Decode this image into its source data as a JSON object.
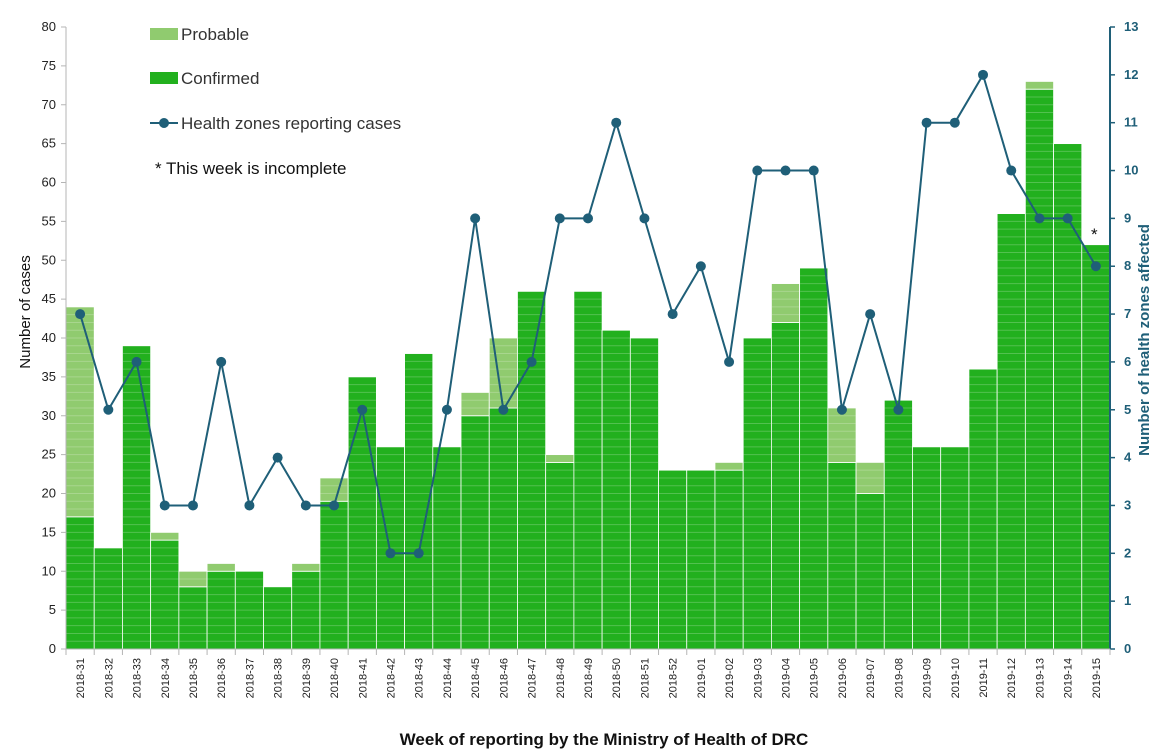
{
  "chart_data": {
    "type": "bar",
    "stacked": true,
    "xlabel": "Week of reporting by the Ministry of Health of DRC",
    "ylabel": "Number of cases",
    "y2label": "Number of health zones affected",
    "ylim": [
      0,
      80
    ],
    "y2lim": [
      0,
      13
    ],
    "yticks": [
      "0",
      "5",
      "10",
      "15",
      "20",
      "25",
      "30",
      "35",
      "40",
      "45",
      "50",
      "55",
      "60",
      "65",
      "70",
      "75",
      "80"
    ],
    "y2ticks": [
      "0",
      "1",
      "2",
      "3",
      "4",
      "5",
      "6",
      "7",
      "8",
      "9",
      "10",
      "11",
      "12",
      "13"
    ],
    "grid": false,
    "legend_position": "top-left",
    "note": "* This week is incomplete",
    "asterisk": "*",
    "categories": [
      "2018-31",
      "2018-32",
      "2018-33",
      "2018-34",
      "2018-35",
      "2018-36",
      "2018-37",
      "2018-38",
      "2018-39",
      "2018-40",
      "2018-41",
      "2018-42",
      "2018-43",
      "2018-44",
      "2018-45",
      "2018-46",
      "2018-47",
      "2018-48",
      "2018-49",
      "2018-50",
      "2018-51",
      "2018-52",
      "2019-01",
      "2019-02",
      "2019-03",
      "2019-04",
      "2019-05",
      "2019-06",
      "2019-07",
      "2019-08",
      "2019-09",
      "2019-10",
      "2019-11",
      "2019-12",
      "2019-13",
      "2019-14",
      "2019-15"
    ],
    "series": [
      {
        "name": "Confirmed",
        "kind": "bar",
        "color": "#22b01e",
        "values": [
          17,
          13,
          39,
          14,
          8,
          10,
          10,
          8,
          10,
          19,
          35,
          26,
          38,
          26,
          30,
          31,
          46,
          24,
          46,
          41,
          40,
          23,
          23,
          23,
          40,
          42,
          49,
          24,
          20,
          32,
          26,
          26,
          36,
          56,
          72,
          65,
          52
        ]
      },
      {
        "name": "Probable",
        "kind": "bar",
        "color": "#90cb6f",
        "values": [
          27,
          0,
          0,
          1,
          2,
          1,
          0,
          0,
          1,
          3,
          0,
          0,
          0,
          0,
          3,
          9,
          0,
          1,
          0,
          0,
          0,
          0,
          0,
          1,
          0,
          5,
          0,
          7,
          4,
          0,
          0,
          0,
          0,
          0,
          1,
          0,
          0
        ]
      },
      {
        "name": "Health zones reporting cases",
        "kind": "line",
        "axis": "right",
        "color": "#1f5f78",
        "values": [
          7,
          5,
          6,
          3,
          3,
          6,
          3,
          4,
          3,
          3,
          5,
          2,
          2,
          5,
          9,
          5,
          6,
          9,
          9,
          11,
          9,
          7,
          8,
          6,
          10,
          10,
          10,
          5,
          7,
          5,
          11,
          11,
          12,
          10,
          9,
          9,
          8
        ]
      }
    ]
  }
}
